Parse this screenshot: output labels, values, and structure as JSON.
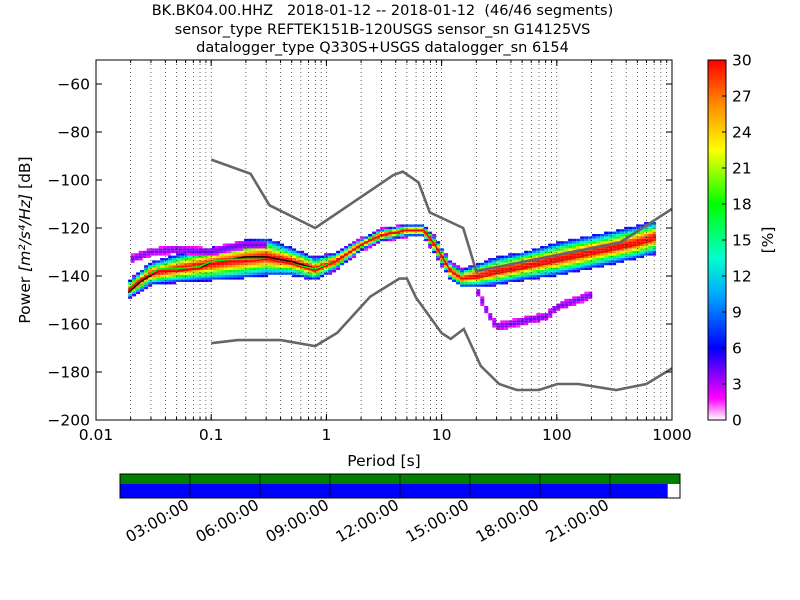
{
  "title_lines": [
    "BK.BK04.00.HHZ   2018-01-12 -- 2018-01-12  (46/46 segments)",
    "sensor_type REFTEK151B-120USGS sensor_sn G14125VS",
    "datalogger_type Q330S+USGS datalogger_sn 6154"
  ],
  "colorbar": {
    "label": "[%]",
    "ticks": [
      "0",
      "3",
      "6",
      "9",
      "12",
      "15",
      "18",
      "21",
      "24",
      "27",
      "30"
    ],
    "range": [
      0,
      30
    ],
    "colormap": "pqlx"
  },
  "timeline": {
    "tick_labels": [
      "03:00:00",
      "06:00:00",
      "09:00:00",
      "12:00:00",
      "15:00:00",
      "18:00:00",
      "21:00:00"
    ],
    "coverage_fraction": 0.978,
    "colors": {
      "top": "#007f00",
      "data": "#0000ff",
      "gap": "#ffffff"
    }
  },
  "chart_data": {
    "type": "heatmap",
    "title": "BK.BK04.00.HHZ   2018-01-12 -- 2018-01-12  (46/46 segments)",
    "xlabel": "Period [s]",
    "ylabel_prefix": "Power ",
    "ylabel_units": "[m²/s⁴/Hz]",
    "ylabel_suffix": " [dB]",
    "xscale": "log",
    "xlim": [
      0.01,
      1000
    ],
    "ylim": [
      -200,
      -50
    ],
    "grid": "dotted, vertical",
    "x_tick_labels": [
      {
        "value": 0.01,
        "label": "0.01"
      },
      {
        "value": 0.1,
        "label": "0.1"
      },
      {
        "value": 1,
        "label": "1"
      },
      {
        "value": 10,
        "label": "10"
      },
      {
        "value": 100,
        "label": "100"
      },
      {
        "value": 1000,
        "label": "1000"
      }
    ],
    "y_tick_labels": [
      {
        "value": -200,
        "label": "−200"
      },
      {
        "value": -180,
        "label": "−180"
      },
      {
        "value": -160,
        "label": "−160"
      },
      {
        "value": -140,
        "label": "−140"
      },
      {
        "value": -120,
        "label": "−120"
      },
      {
        "value": -100,
        "label": "−100"
      },
      {
        "value": -80,
        "label": "−80"
      },
      {
        "value": -60,
        "label": "−60"
      }
    ],
    "series": [
      {
        "role": "NHNM",
        "color": "#666666",
        "x": [
          0.1,
          0.22,
          0.32,
          0.8,
          3.8,
          4.6,
          6.3,
          7.9,
          15.4,
          20,
          354.8,
          1000
        ],
        "y": [
          -91.5,
          -97.4,
          -110.5,
          -120.0,
          -98.0,
          -96.5,
          -101.0,
          -113.5,
          -120.0,
          -138.0,
          -126.0,
          -112.0
        ]
      },
      {
        "role": "NLNM",
        "color": "#666666",
        "x": [
          0.1,
          0.17,
          0.4,
          0.8,
          1.24,
          2.4,
          4.3,
          5.0,
          6.0,
          10.0,
          12.0,
          15.6,
          21.9,
          31.6,
          45.0,
          70.0,
          101.0,
          154.0,
          328.0,
          600.0,
          1000.0
        ],
        "y": [
          -168.0,
          -166.7,
          -166.7,
          -169.2,
          -163.7,
          -148.6,
          -141.1,
          -141.1,
          -149.0,
          -163.8,
          -166.2,
          -162.1,
          -177.5,
          -185.0,
          -187.5,
          -187.5,
          -185.0,
          -185.0,
          -187.5,
          -185.0,
          -178.5
        ]
      },
      {
        "role": "median",
        "color": "#000000",
        "x": [
          0.019,
          0.025,
          0.035,
          0.05,
          0.08,
          0.1,
          0.15,
          0.2,
          0.3,
          0.5,
          0.8,
          1.2,
          2,
          3,
          5,
          7,
          9,
          12,
          15,
          20,
          30,
          50,
          100,
          200,
          500,
          700
        ],
        "y": [
          -147,
          -142,
          -138,
          -138,
          -137,
          -134,
          -133,
          -132,
          -132,
          -134,
          -137,
          -134,
          -127,
          -123,
          -121,
          -121,
          -128,
          -138,
          -141,
          -141,
          -139,
          -137,
          -134,
          -131,
          -127,
          -125
        ]
      },
      {
        "role": "mean",
        "color": "#00ff00",
        "x": [
          0.019,
          0.025,
          0.035,
          0.05,
          0.08,
          0.1,
          0.15,
          0.2,
          0.3,
          0.5,
          0.8,
          1.2,
          2,
          3,
          5,
          7,
          9,
          12,
          15,
          20,
          30,
          50,
          100,
          200,
          500,
          700
        ],
        "y": [
          -145,
          -141,
          -137,
          -137,
          -136,
          -134,
          -133,
          -133,
          -133,
          -135,
          -137,
          -134,
          -127,
          -123,
          -121,
          -121,
          -128,
          -138,
          -141,
          -141,
          -139,
          -137,
          -134,
          -131,
          -127,
          -125
        ]
      },
      {
        "role": "mode",
        "color": "#ff0000",
        "x": [
          0.019,
          0.025,
          0.035,
          0.05,
          0.08,
          0.1,
          0.15,
          0.2,
          0.3,
          0.5,
          0.8,
          1.2,
          2,
          3,
          5,
          7,
          9,
          12,
          15,
          20,
          30,
          50,
          100,
          200,
          500,
          700
        ],
        "y": [
          -146,
          -141,
          -138,
          -138,
          -137,
          -135,
          -134,
          -134,
          -133,
          -135,
          -138,
          -134,
          -127,
          -123,
          -121,
          -121,
          -128,
          -138,
          -141,
          -141,
          -139,
          -137,
          -134,
          -131,
          -127,
          -125
        ]
      }
    ],
    "density_bands": [
      {
        "x": [
          0.019,
          0.03,
          0.05,
          0.1,
          0.2,
          0.3,
          0.5,
          0.8,
          1.2,
          2,
          3,
          5,
          7,
          9,
          12,
          15,
          20,
          30,
          50,
          100,
          200,
          500,
          700
        ],
        "center": [
          -146,
          -139,
          -137,
          -135,
          -133,
          -132,
          -134,
          -137,
          -134,
          -127,
          -123,
          -121,
          -121,
          -128,
          -138,
          -141,
          -140,
          -138,
          -136,
          -133,
          -130,
          -126,
          -124
        ],
        "spread": [
          3,
          4,
          5,
          6,
          7,
          7,
          5,
          4,
          3,
          2,
          2,
          2,
          2,
          3,
          3,
          3,
          4,
          5,
          5,
          6,
          6,
          6,
          6
        ],
        "percent_peak": 30
      },
      {
        "x": [
          20,
          25,
          30,
          40,
          60,
          80,
          100,
          150,
          200
        ],
        "center": [
          -145,
          -155,
          -161,
          -160,
          -158,
          -157,
          -153,
          -150,
          -148
        ],
        "spread": [
          2,
          2,
          2,
          2,
          2,
          2,
          2,
          2,
          2
        ],
        "percent_peak": 4
      },
      {
        "x": [
          0.02,
          0.03,
          0.05,
          0.1,
          0.15,
          0.2,
          0.3
        ],
        "center": [
          -133,
          -130,
          -129,
          -130,
          -128,
          -127,
          -127
        ],
        "spread": [
          2,
          2,
          2,
          2,
          2,
          2,
          2
        ],
        "percent_peak": 4
      }
    ]
  }
}
